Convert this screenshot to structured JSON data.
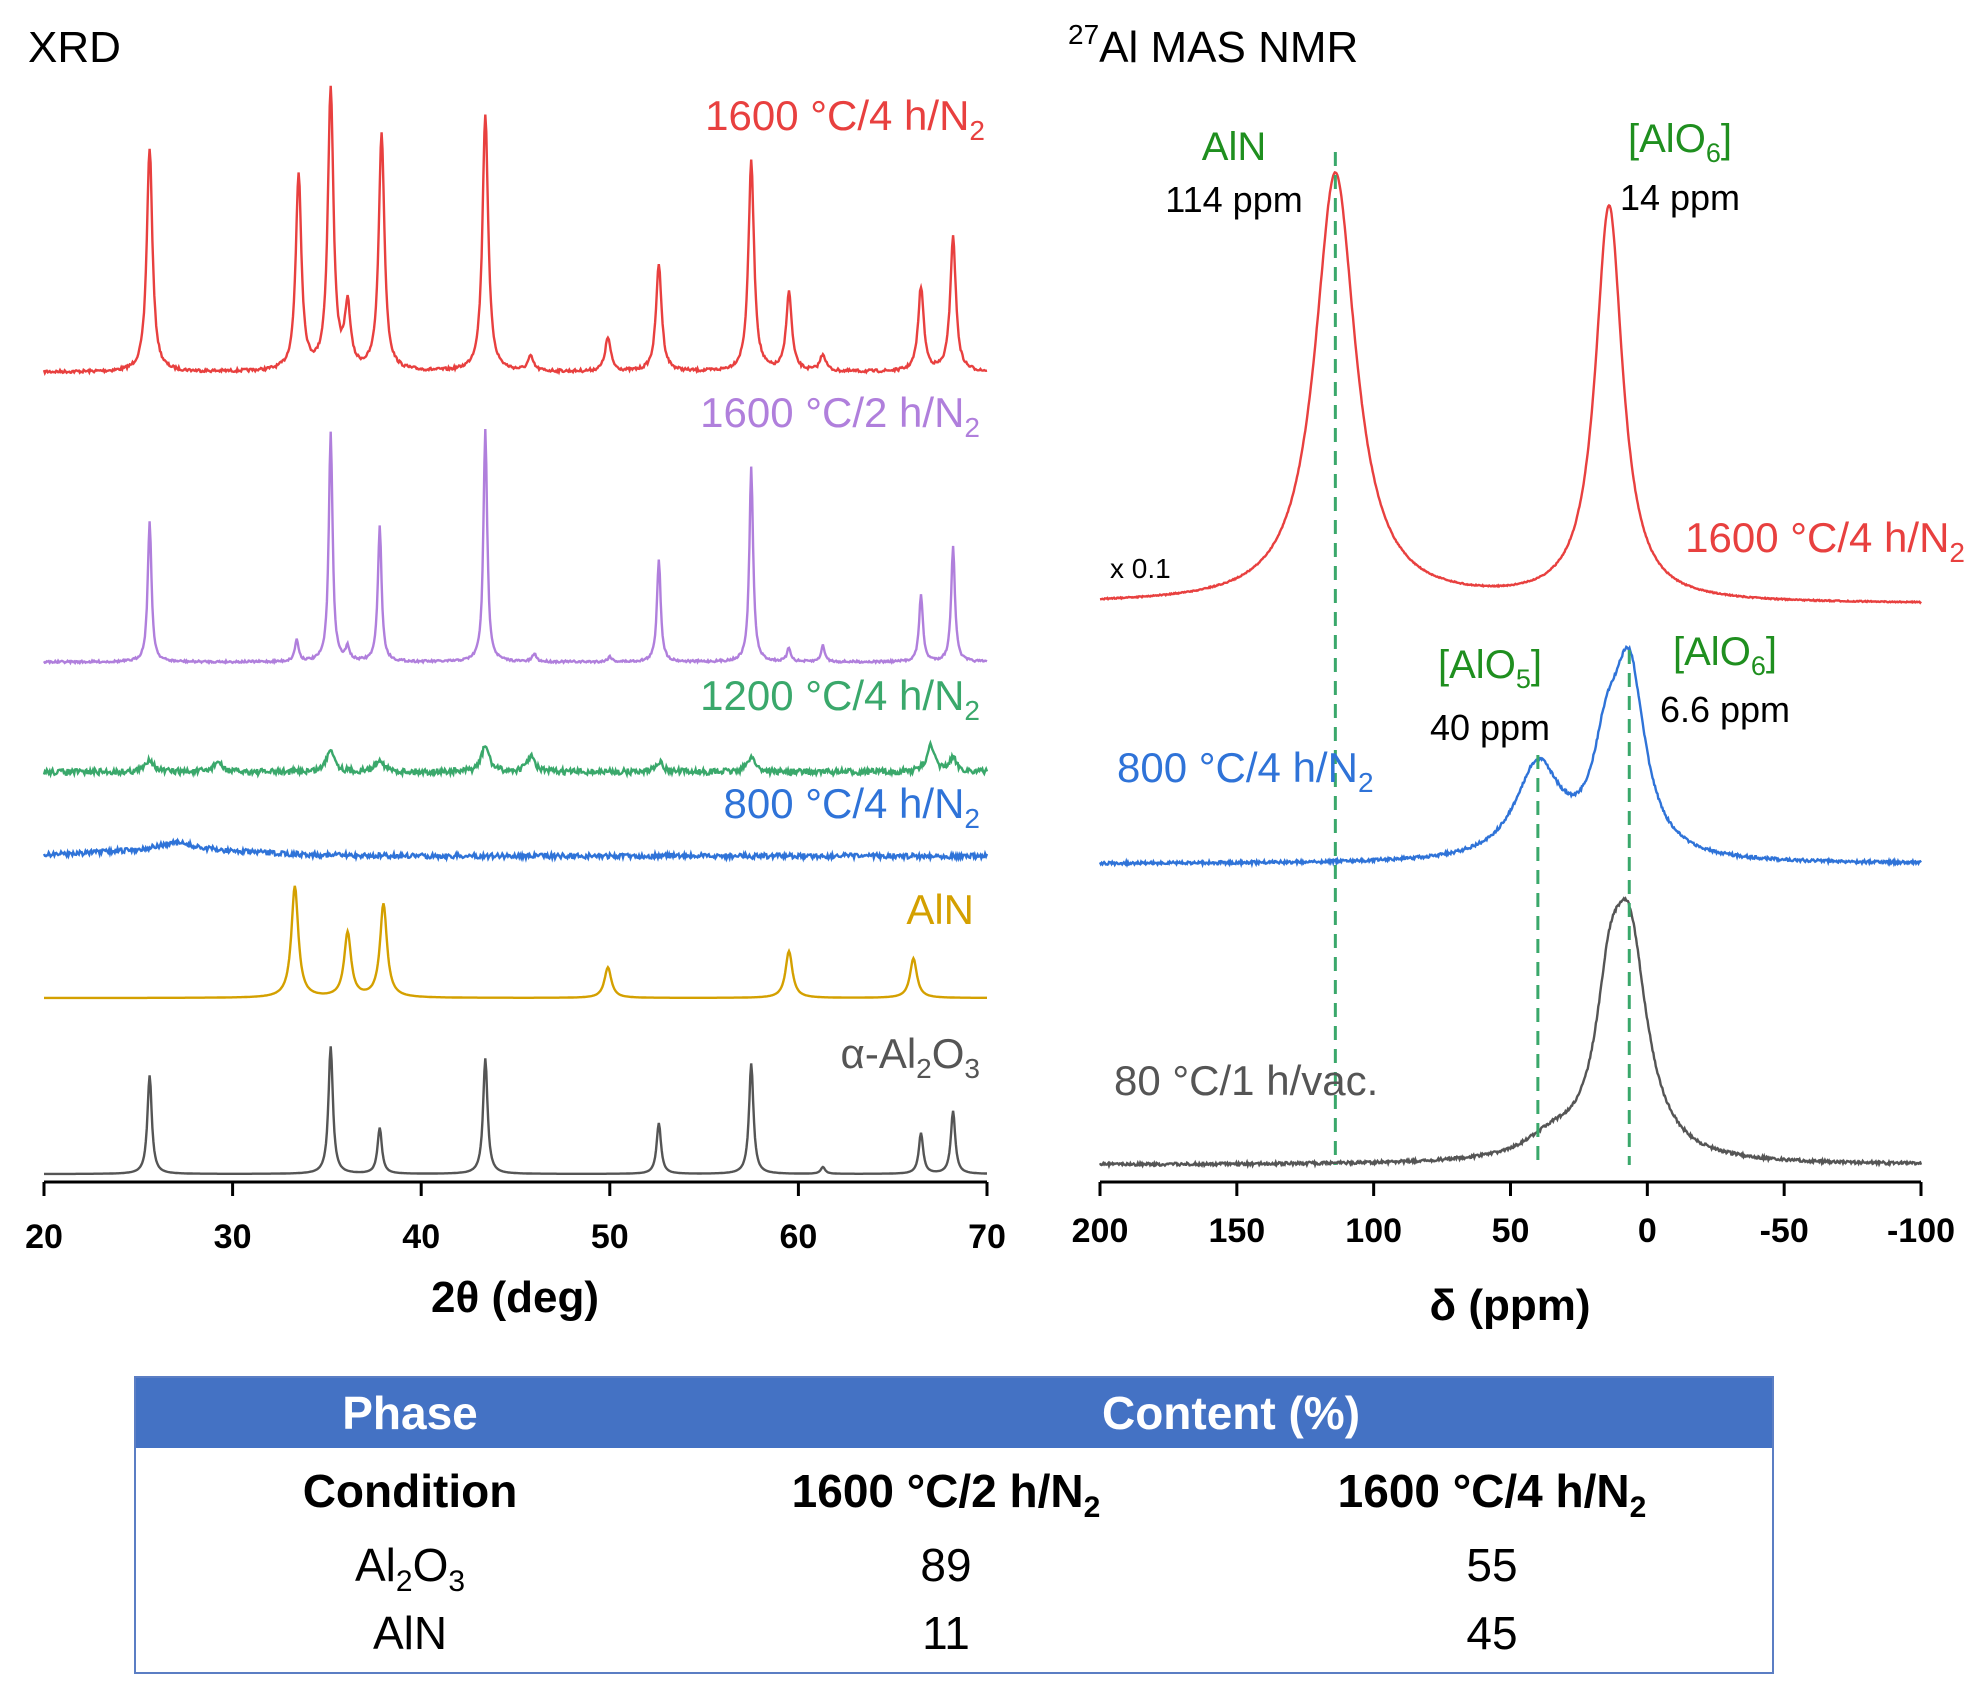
{
  "xrd": {
    "title": "XRD",
    "xlabel": "2θ (deg)",
    "ticks": [
      "20",
      "30",
      "40",
      "50",
      "60",
      "70"
    ],
    "labels": {
      "s1600_4": {
        "text": "1600 °C/4 h/N",
        "sub": "2"
      },
      "s1600_2": {
        "text": "1600 °C/2 h/N",
        "sub": "2"
      },
      "s1200_4": {
        "text": "1200 °C/4 h/N",
        "sub": "2"
      },
      "s800_4": {
        "text": "800 °C/4 h/N",
        "sub": "2"
      },
      "aln": "AlN",
      "alumina": {
        "a": "α-Al",
        "s1": "2",
        "b": "O",
        "s2": "3"
      }
    }
  },
  "nmr": {
    "title_sup": "27",
    "title": "Al MAS NMR",
    "xlabel": "δ (ppm)",
    "ticks": [
      "200",
      "150",
      "100",
      "50",
      "0",
      "-50",
      "-100"
    ],
    "scale_note": "x 0.1",
    "labels": {
      "s1600_4": {
        "text": "1600 °C/4 h/N",
        "sub": "2"
      },
      "s800_4": {
        "text": "800 °C/4 h/N",
        "sub": "2"
      },
      "s80": "80 °C/1 h/vac."
    },
    "annotations": {
      "aln_name": "AlN",
      "aln_ppm": "114 ppm",
      "alo6_top": {
        "a": "[AlO",
        "sub": "6",
        "b": "]"
      },
      "alo6_top_ppm": "14 ppm",
      "alo5": {
        "a": "[AlO",
        "sub": "5",
        "b": "]"
      },
      "alo5_ppm": "40 ppm",
      "alo6_mid": {
        "a": "[AlO",
        "sub": "6",
        "b": "]"
      },
      "alo6_mid_ppm": "6.6 ppm"
    }
  },
  "colors": {
    "s1600_4": "#e8403f",
    "s1600_2": "#b07fdc",
    "s1200_4": "#3aa86b",
    "s800_4": "#2f73d8",
    "aln": "#d4a000",
    "alumina": "#555555",
    "annotation": "#1f8f1f",
    "table_header": "#4472c4"
  },
  "table": {
    "header": {
      "phase": "Phase",
      "content": "Content (%)"
    },
    "condition_label": "Condition",
    "col1": {
      "text": "1600 °C/2 h/N",
      "sub": "2"
    },
    "col2": {
      "text": "1600 °C/4 h/N",
      "sub": "2"
    },
    "rows": [
      {
        "phase": {
          "a": "Al",
          "s1": "2",
          "b": "O",
          "s2": "3"
        },
        "c1": "89",
        "c2": "55"
      },
      {
        "phase": "AlN",
        "c1": "11",
        "c2": "45"
      }
    ]
  },
  "chart_data": [
    {
      "type": "line",
      "title": "XRD",
      "xlabel": "2θ (deg)",
      "xlim": [
        20,
        70
      ],
      "y_units": "arbitrary (stacked, offset)",
      "series": [
        {
          "name": "1600 °C/4 h/N2",
          "peaks": [
            [
              25.6,
              0.8
            ],
            [
              33.5,
              0.7
            ],
            [
              35.2,
              1.0
            ],
            [
              36.1,
              0.22
            ],
            [
              37.9,
              0.85
            ],
            [
              43.4,
              0.92
            ],
            [
              45.8,
              0.05
            ],
            [
              49.9,
              0.12
            ],
            [
              52.6,
              0.38
            ],
            [
              57.5,
              0.75
            ],
            [
              59.5,
              0.28
            ],
            [
              61.3,
              0.06
            ],
            [
              66.5,
              0.3
            ],
            [
              68.2,
              0.48
            ]
          ]
        },
        {
          "name": "1600 °C/2 h/N2",
          "peaks": [
            [
              25.6,
              0.52
            ],
            [
              33.4,
              0.08
            ],
            [
              35.2,
              0.85
            ],
            [
              36.1,
              0.05
            ],
            [
              37.8,
              0.5
            ],
            [
              43.4,
              0.86
            ],
            [
              46.0,
              0.03
            ],
            [
              50.0,
              0.02
            ],
            [
              52.6,
              0.38
            ],
            [
              57.5,
              0.72
            ],
            [
              59.5,
              0.05
            ],
            [
              61.3,
              0.06
            ],
            [
              66.5,
              0.25
            ],
            [
              68.2,
              0.43
            ]
          ]
        },
        {
          "name": "1200 °C/4 h/N2",
          "peaks": [
            [
              25.6,
              0.05
            ],
            [
              29.2,
              0.04
            ],
            [
              35.2,
              0.09
            ],
            [
              37.8,
              0.05
            ],
            [
              43.4,
              0.1
            ],
            [
              45.8,
              0.06
            ],
            [
              52.6,
              0.04
            ],
            [
              57.5,
              0.06
            ],
            [
              67.0,
              0.1
            ],
            [
              68.2,
              0.05
            ]
          ]
        },
        {
          "name": "800 °C/4 h/N2",
          "peaks": [
            [
              27.0,
              0.03
            ]
          ]
        },
        {
          "name": "AlN",
          "peaks": [
            [
              33.3,
              0.62
            ],
            [
              36.1,
              0.36
            ],
            [
              38.0,
              0.52
            ],
            [
              49.9,
              0.17
            ],
            [
              59.5,
              0.26
            ],
            [
              66.1,
              0.22
            ]
          ]
        },
        {
          "name": "α-Al2O3",
          "peaks": [
            [
              25.6,
              0.58
            ],
            [
              35.2,
              0.75
            ],
            [
              37.8,
              0.27
            ],
            [
              43.4,
              0.68
            ],
            [
              52.6,
              0.3
            ],
            [
              57.5,
              0.65
            ],
            [
              61.3,
              0.04
            ],
            [
              66.5,
              0.24
            ],
            [
              68.2,
              0.37
            ]
          ]
        }
      ]
    },
    {
      "type": "line",
      "title": "27Al MAS NMR",
      "xlabel": "δ (ppm)",
      "xlim": [
        200,
        -100
      ],
      "y_units": "arbitrary (stacked, offset)",
      "reference_lines_ppm": [
        114,
        40,
        6.6
      ],
      "series": [
        {
          "name": "1600 °C/4 h/N2",
          "scale": "x 0.1",
          "peaks": [
            [
              114,
              1.0
            ],
            [
              14,
              0.92
            ]
          ]
        },
        {
          "name": "800 °C/4 h/N2",
          "peaks": [
            [
              40,
              0.44
            ],
            [
              15,
              0.38
            ],
            [
              6.6,
              0.85
            ]
          ]
        },
        {
          "name": "80 °C/1 h/vac.",
          "peaks": [
            [
              35,
              0.08
            ],
            [
              14,
              0.48
            ],
            [
              6.6,
              0.88
            ]
          ]
        }
      ]
    }
  ]
}
